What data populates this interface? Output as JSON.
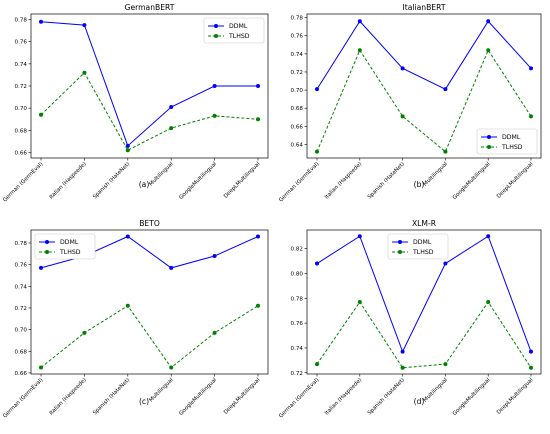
{
  "colors": {
    "ddml": "#0000ff",
    "tlhsd": "#008000"
  },
  "chart_data": [
    {
      "type": "line",
      "title": "GermanBERT",
      "caption": "(a)",
      "categories": [
        "German (GermEval)",
        "Italian (Haspeede)",
        "Spanish (HateNet)",
        "Multilingual",
        "GoogleMultilingual",
        "DeepLMultilingual"
      ],
      "series": [
        {
          "name": "DDML",
          "values": [
            0.778,
            0.775,
            0.666,
            0.701,
            0.72,
            0.72
          ]
        },
        {
          "name": "TLHSD",
          "values": [
            0.694,
            0.732,
            0.662,
            0.682,
            0.693,
            0.69
          ]
        }
      ],
      "ylim": [
        0.655,
        0.785
      ],
      "yticks": [
        "0.66",
        "0.68",
        "0.70",
        "0.72",
        "0.74",
        "0.76",
        "0.78"
      ],
      "legend": "top-right"
    },
    {
      "type": "line",
      "title": "ItalianBERT",
      "caption": "(b)",
      "categories": [
        "German (GermEval)",
        "Italian (Haspeede)",
        "Spanish (HateNet)",
        "Multilingual",
        "GoogleMultilingual",
        "DeepLMultilingual"
      ],
      "series": [
        {
          "name": "DDML",
          "values": [
            0.701,
            0.776,
            0.724,
            0.701,
            0.776,
            0.724
          ]
        },
        {
          "name": "TLHSD",
          "values": [
            0.632,
            0.744,
            0.671,
            0.632,
            0.744,
            0.671
          ]
        }
      ],
      "ylim": [
        0.625,
        0.784
      ],
      "yticks": [
        "0.64",
        "0.66",
        "0.68",
        "0.70",
        "0.72",
        "0.74",
        "0.76",
        "0.78"
      ],
      "legend": "bottom-right"
    },
    {
      "type": "line",
      "title": "BETO",
      "caption": "(c)",
      "categories": [
        "German (GermEval)",
        "Italian (Haspeede)",
        "Spanish (HateNet)",
        "Multilingual",
        "GoogleMultilingual",
        "DeepLMultilingual"
      ],
      "series": [
        {
          "name": "DDML",
          "values": [
            0.757,
            0.768,
            0.786,
            0.757,
            0.768,
            0.786
          ]
        },
        {
          "name": "TLHSD",
          "values": [
            0.665,
            0.697,
            0.722,
            0.665,
            0.697,
            0.722
          ]
        }
      ],
      "ylim": [
        0.659,
        0.792
      ],
      "yticks": [
        "0.66",
        "0.68",
        "0.70",
        "0.72",
        "0.74",
        "0.76",
        "0.78"
      ],
      "legend": "top-left"
    },
    {
      "type": "line",
      "title": "XLM-R",
      "caption": "(d)",
      "categories": [
        "German (GermEval)",
        "Italian (Haspeede)",
        "Spanish (HateNet)",
        "Multilingual",
        "GoogleMultilingual",
        "DeepLMultilingual"
      ],
      "series": [
        {
          "name": "DDML",
          "values": [
            0.808,
            0.83,
            0.737,
            0.808,
            0.83,
            0.737
          ]
        },
        {
          "name": "TLHSD",
          "values": [
            0.727,
            0.777,
            0.724,
            0.727,
            0.777,
            0.724
          ]
        }
      ],
      "ylim": [
        0.719,
        0.835
      ],
      "yticks": [
        "0.72",
        "0.74",
        "0.76",
        "0.78",
        "0.80",
        "0.82"
      ],
      "legend": "top-center"
    }
  ]
}
